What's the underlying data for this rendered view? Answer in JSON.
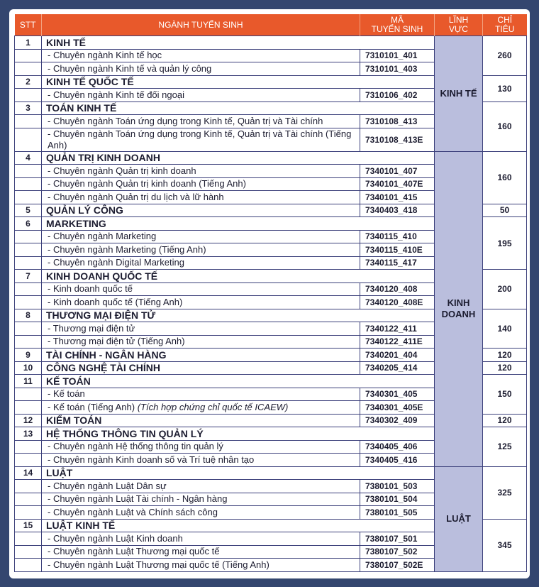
{
  "header": {
    "stt": "STT",
    "name": "NGÀNH TUYỂN SINH",
    "code_l1": "MÃ",
    "code_l2": "TUYỂN SINH",
    "field_l1": "LĨNH",
    "field_l2": "VỰC",
    "quota_l1": "CHỈ",
    "quota_l2": "TIÊU"
  },
  "colors": {
    "header_bg": "#e8592b",
    "field_bg": "#babedd",
    "border": "#3b3f7a",
    "page_bg": "#34466f"
  },
  "groups": [
    {
      "stt": "1",
      "name": "KINH TẾ",
      "field": "KINH TẾ",
      "quota": "260",
      "subs": [
        {
          "name": "- Chuyên ngành Kinh tế học",
          "code": "7310101_401"
        },
        {
          "name": "- Chuyên ngành Kinh tế và quản lý công",
          "code": "7310101_403"
        }
      ]
    },
    {
      "stt": "2",
      "name": "KINH TẾ QUỐC TẾ",
      "field": "KINH TẾ",
      "quota": "130",
      "subs": [
        {
          "name": "- Chuyên ngành Kinh tế đối ngoại",
          "code": "7310106_402"
        }
      ]
    },
    {
      "stt": "3",
      "name": "TOÁN KINH TẾ",
      "field": "KINH TẾ",
      "quota": "160",
      "subs": [
        {
          "name": "- Chuyên ngành Toán ứng dụng trong Kinh tế, Quản trị và Tài chính",
          "code": "7310108_413"
        },
        {
          "name": "- Chuyên ngành Toán ứng dụng trong Kinh tế, Quản trị và Tài chính (Tiếng Anh)",
          "code": "7310108_413E"
        }
      ]
    },
    {
      "stt": "4",
      "name": "QUẢN TRỊ KINH DOANH",
      "field": "KINH DOANH",
      "quota": "160",
      "subs": [
        {
          "name": "- Chuyên ngành Quản trị kinh doanh",
          "code": "7340101_407"
        },
        {
          "name": "- Chuyên ngành Quản trị kinh doanh (Tiếng Anh)",
          "code": "7340101_407E"
        },
        {
          "name": "- Chuyên ngành Quản trị du lịch và lữ hành",
          "code": "7340101_415"
        }
      ]
    },
    {
      "stt": "5",
      "name": "QUẢN LÝ CÔNG",
      "code": "7340403_418",
      "field": "KINH DOANH",
      "quota": "50",
      "subs": []
    },
    {
      "stt": "6",
      "name": "MARKETING",
      "field": "KINH DOANH",
      "quota": "195",
      "subs": [
        {
          "name": "- Chuyên ngành Marketing",
          "code": "7340115_410"
        },
        {
          "name": "- Chuyên ngành Marketing (Tiếng Anh)",
          "code": "7340115_410E"
        },
        {
          "name": "- Chuyên ngành Digital Marketing",
          "code": "7340115_417"
        }
      ]
    },
    {
      "stt": "7",
      "name": "KINH DOANH QUỐC TẾ",
      "field": "KINH DOANH",
      "quota": "200",
      "subs": [
        {
          "name": "- Kinh doanh quốc tế",
          "code": "7340120_408"
        },
        {
          "name": "- Kinh doanh quốc tế (Tiếng Anh)",
          "code": "7340120_408E"
        }
      ]
    },
    {
      "stt": "8",
      "name": "THƯƠNG MẠI ĐIỆN TỬ",
      "field": "KINH DOANH",
      "quota": "140",
      "subs": [
        {
          "name": "- Thương mại điện tử",
          "code": "7340122_411"
        },
        {
          "name": "- Thương mại điện tử (Tiếng Anh)",
          "code": "7340122_411E"
        }
      ]
    },
    {
      "stt": "9",
      "name": "TÀI CHÍNH - NGÂN HÀNG",
      "code": "7340201_404",
      "field": "KINH DOANH",
      "quota": "120",
      "subs": []
    },
    {
      "stt": "10",
      "name": "CÔNG NGHỆ TÀI CHÍNH",
      "code": "7340205_414",
      "field": "KINH DOANH",
      "quota": "120",
      "subs": []
    },
    {
      "stt": "11",
      "name": "KẾ TOÁN",
      "field": "KINH DOANH",
      "quota": "150",
      "subs": [
        {
          "name": "- Kế toán",
          "code": "7340301_405"
        },
        {
          "name": "- Kế toán (Tiếng Anh)",
          "note": "(Tích hợp chứng chỉ quốc tế ICAEW)",
          "code": "7340301_405E"
        }
      ]
    },
    {
      "stt": "12",
      "name": "KIỂM TOÁN",
      "code": "7340302_409",
      "field": "KINH DOANH",
      "quota": "120",
      "subs": []
    },
    {
      "stt": "13",
      "name": "HỆ THỐNG THÔNG TIN QUẢN LÝ",
      "field": "KINH DOANH",
      "quota": "125",
      "subs": [
        {
          "name": "- Chuyên ngành Hệ thống thông tin quản lý",
          "code": "7340405_406"
        },
        {
          "name": "- Chuyên ngành Kinh doanh số và Trí tuệ nhân tạo",
          "code": "7340405_416"
        }
      ]
    },
    {
      "stt": "14",
      "name": "LUẬT",
      "field": "LUẬT",
      "quota": "325",
      "subs": [
        {
          "name": "- Chuyên ngành Luật Dân sự",
          "code": "7380101_503"
        },
        {
          "name": "- Chuyên ngành Luật Tài chính - Ngân hàng",
          "code": "7380101_504"
        },
        {
          "name": "- Chuyên ngành Luật và Chính sách công",
          "code": "7380101_505"
        }
      ]
    },
    {
      "stt": "15",
      "name": "LUẬT KINH TẾ",
      "field": "LUẬT",
      "quota": "345",
      "subs": [
        {
          "name": "- Chuyên ngành Luật Kinh doanh",
          "code": "7380107_501"
        },
        {
          "name": "- Chuyên ngành Luật Thương mại quốc tế",
          "code": "7380107_502"
        },
        {
          "name": "- Chuyên ngành Luật Thương mại quốc tế (Tiếng Anh)",
          "code": "7380107_502E"
        }
      ]
    }
  ]
}
